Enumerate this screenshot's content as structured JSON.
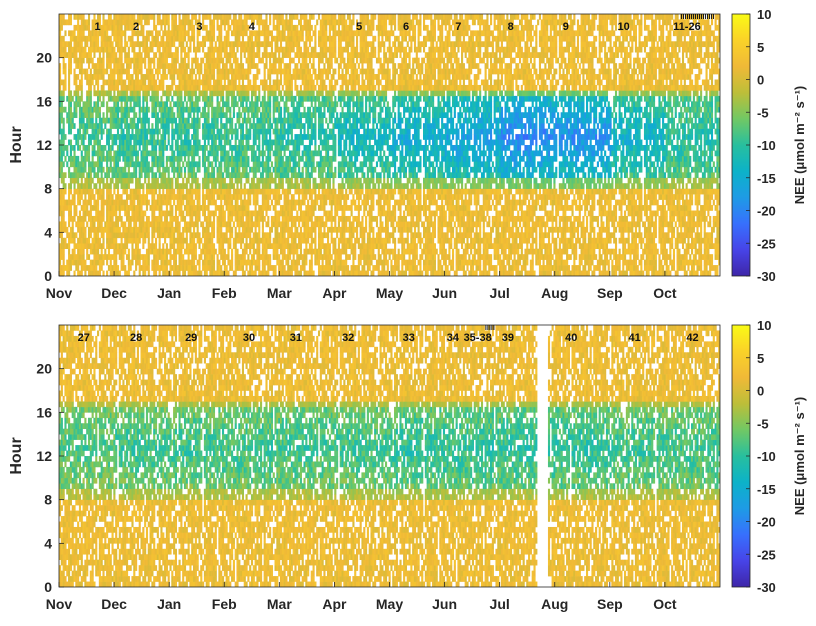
{
  "chart_data": [
    {
      "type": "heatmap",
      "panel": "top",
      "ylabel": "Hour",
      "yticks": [
        0,
        4,
        8,
        12,
        16,
        20
      ],
      "ylim": [
        0,
        24
      ],
      "xticks": [
        "Nov",
        "Dec",
        "Jan",
        "Feb",
        "Mar",
        "Apr",
        "May",
        "Jun",
        "Jul",
        "Aug",
        "Sep",
        "Oct"
      ],
      "xlim_months": [
        0,
        12
      ],
      "daytime_hours": [
        8,
        17
      ],
      "event_labels": [
        {
          "text": "1",
          "month": 0.7
        },
        {
          "text": "2",
          "month": 1.4
        },
        {
          "text": "3",
          "month": 2.55
        },
        {
          "text": "4",
          "month": 3.5
        },
        {
          "text": "5",
          "month": 5.45
        },
        {
          "text": "6",
          "month": 6.3
        },
        {
          "text": "7",
          "month": 7.25
        },
        {
          "text": "8",
          "month": 8.2
        },
        {
          "text": "9",
          "month": 9.2
        },
        {
          "text": "10",
          "month": 10.25
        },
        {
          "text": "11-26",
          "month": 11.4
        }
      ],
      "event_tick_cluster": {
        "month_start": 11.3,
        "month_end": 11.9
      },
      "colorbar": {
        "label": "NEE (μmol m⁻² s⁻¹)",
        "min": -30,
        "max": 10,
        "ticks": [
          10,
          5,
          0,
          -5,
          -10,
          -15,
          -20,
          -25,
          -30
        ]
      },
      "daytime_nee_by_month": [
        -9,
        -10,
        -10,
        -10,
        -11,
        -13,
        -15,
        -17,
        -20,
        -19,
        -14,
        -11
      ]
    },
    {
      "type": "heatmap",
      "panel": "bottom",
      "ylabel": "Hour",
      "yticks": [
        0,
        4,
        8,
        12,
        16,
        20
      ],
      "ylim": [
        0,
        24
      ],
      "xticks": [
        "Nov",
        "Dec",
        "Jan",
        "Feb",
        "Mar",
        "Apr",
        "May",
        "Jun",
        "Jul",
        "Aug",
        "Sep",
        "Oct"
      ],
      "xlim_months": [
        0,
        12
      ],
      "daytime_hours": [
        8,
        17
      ],
      "data_gap_months": [
        8.65,
        8.85
      ],
      "event_labels": [
        {
          "text": "27",
          "month": 0.45
        },
        {
          "text": "28",
          "month": 1.4
        },
        {
          "text": "29",
          "month": 2.4
        },
        {
          "text": "30",
          "month": 3.45
        },
        {
          "text": "31",
          "month": 4.3
        },
        {
          "text": "32",
          "month": 5.25
        },
        {
          "text": "33",
          "month": 6.35
        },
        {
          "text": "34",
          "month": 7.15
        },
        {
          "text": "35-38",
          "month": 7.6
        },
        {
          "text": "39",
          "month": 8.15
        },
        {
          "text": "40",
          "month": 9.3
        },
        {
          "text": "41",
          "month": 10.45
        },
        {
          "text": "42",
          "month": 11.5
        }
      ],
      "event_tick_cluster": {
        "month_start": 7.75,
        "month_end": 7.9
      },
      "colorbar": {
        "label": "NEE (μmol m⁻² s⁻¹)",
        "min": -30,
        "max": 10,
        "ticks": [
          10,
          5,
          0,
          -5,
          -10,
          -15,
          -20,
          -25,
          -30
        ]
      },
      "daytime_nee_by_month": [
        -8,
        -9,
        -9,
        -9,
        -9,
        -9,
        -10,
        -10,
        -10,
        -10,
        -9,
        -9
      ]
    }
  ]
}
